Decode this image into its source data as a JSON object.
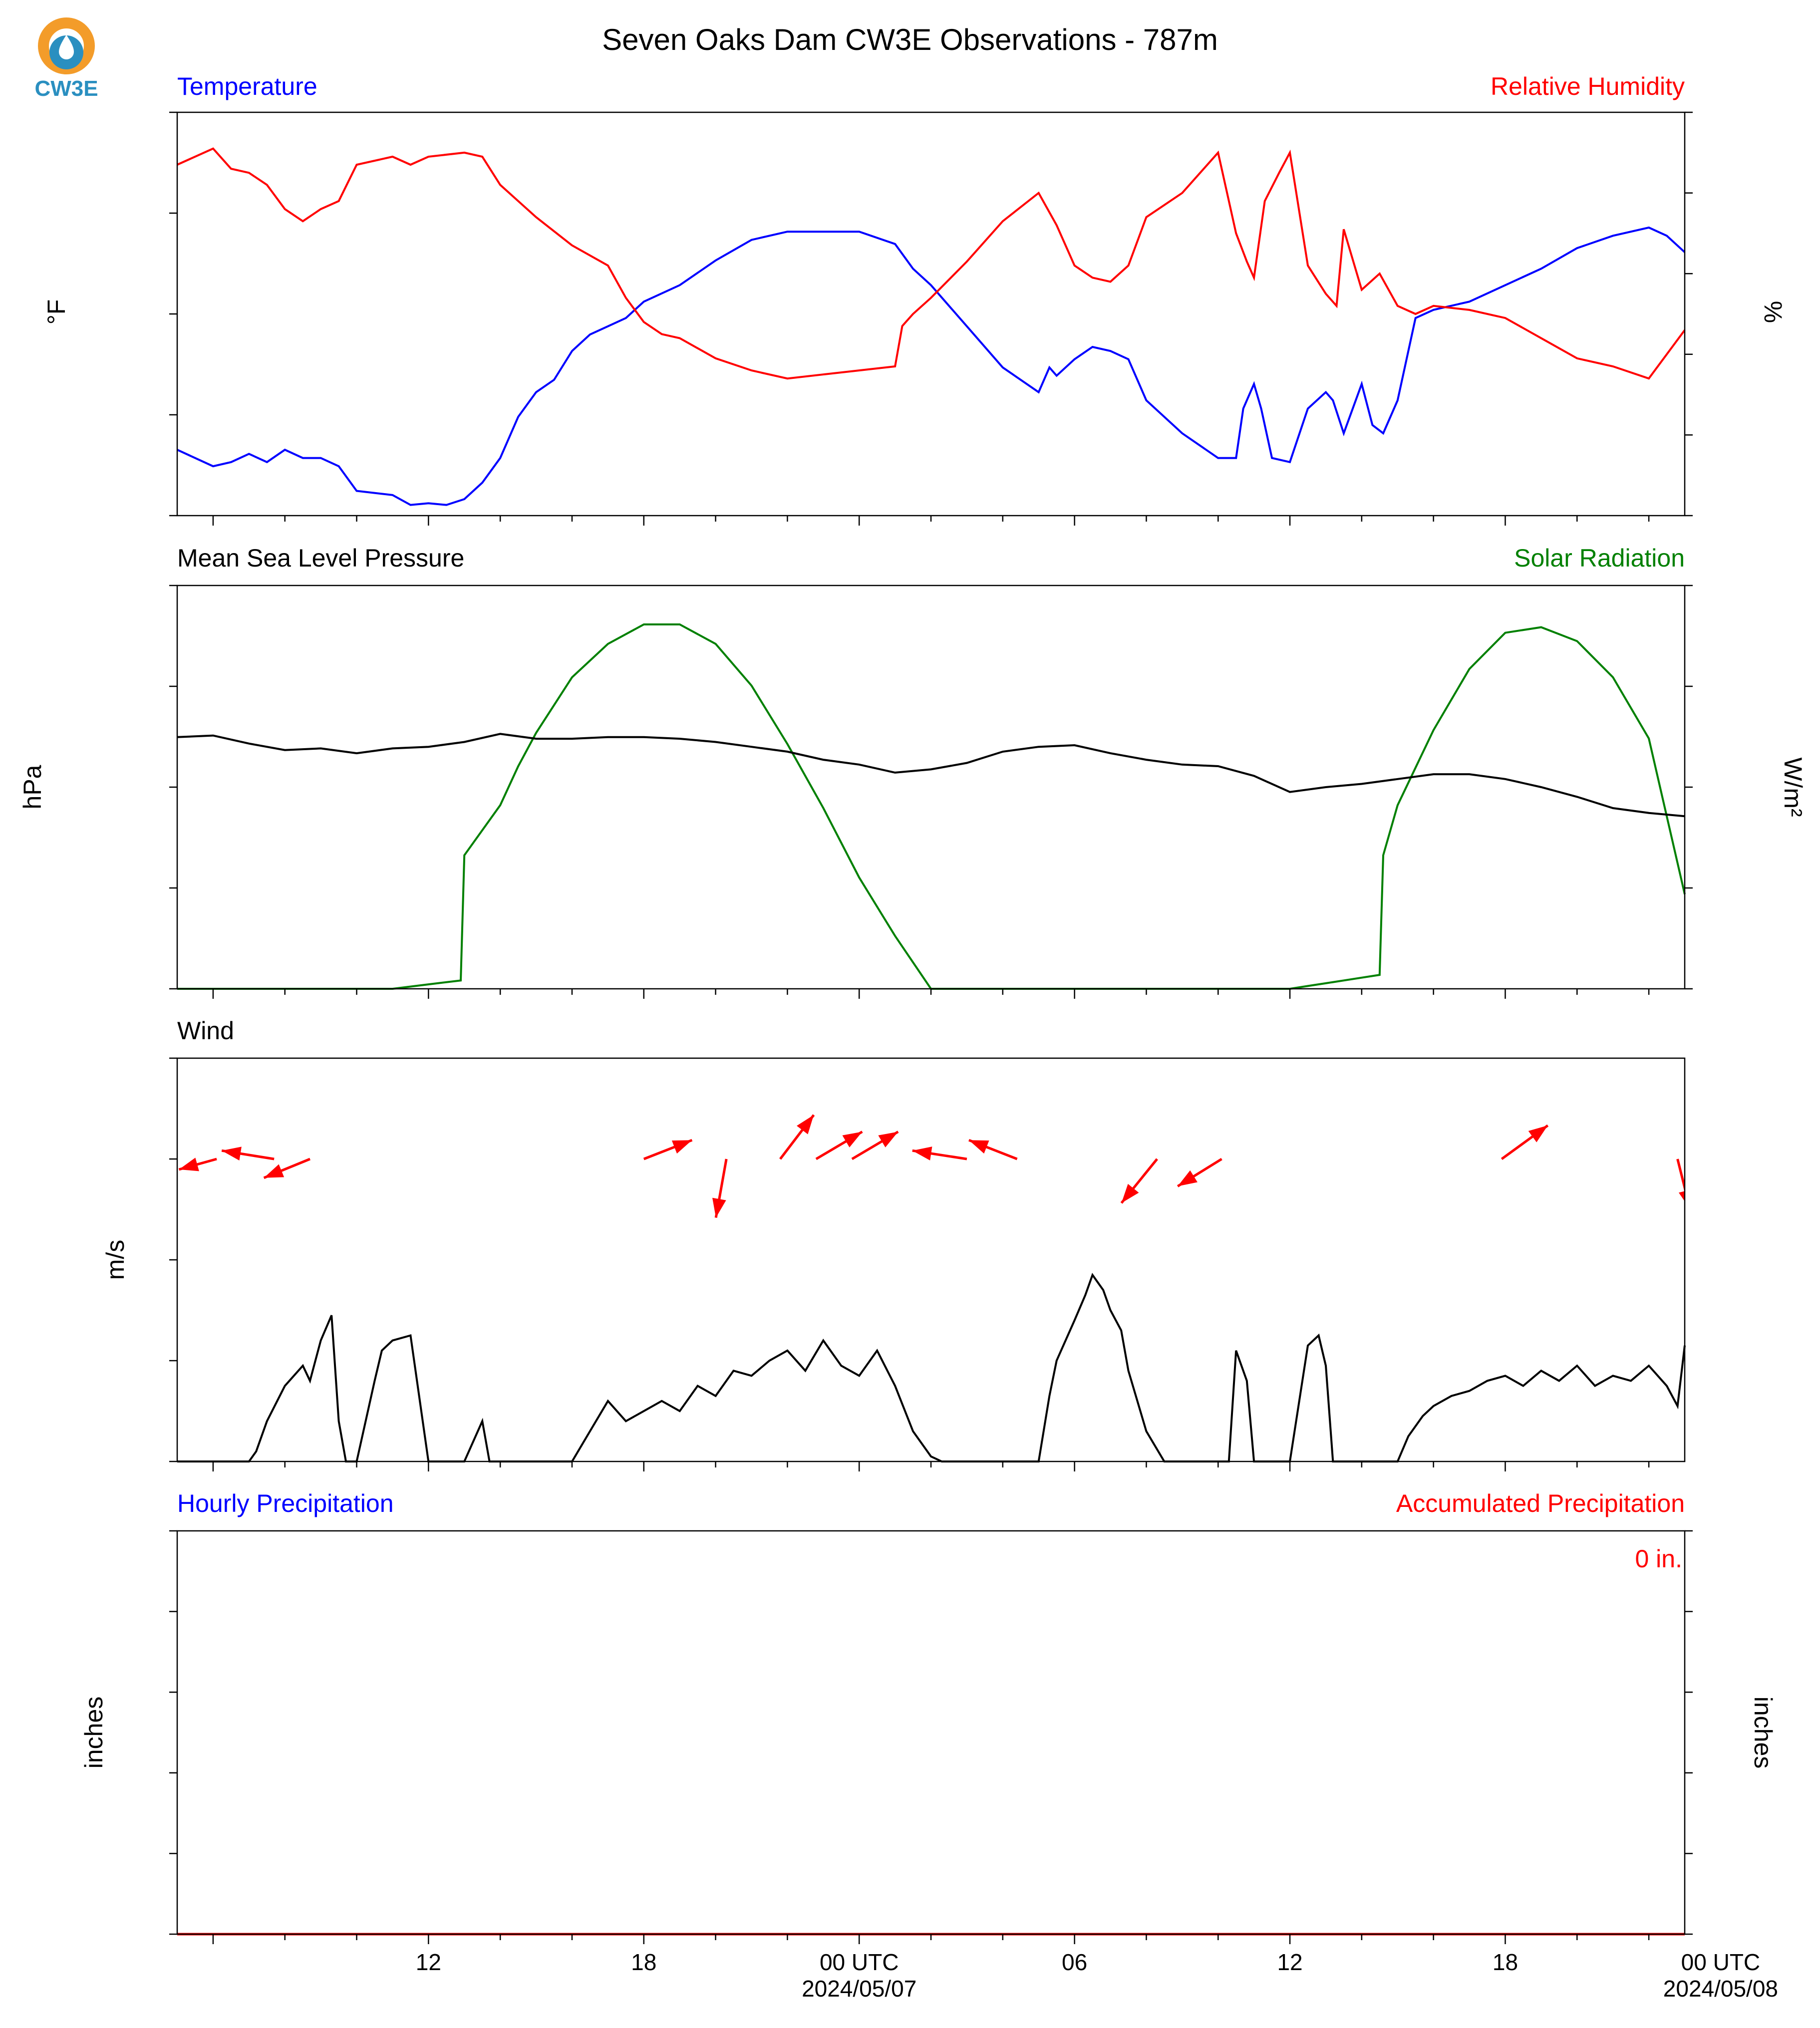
{
  "title": "Seven Oaks Dam CW3E Observations - 787m",
  "logo_text": "CW3E",
  "x_axis": {
    "range_hours": [
      -19.0,
      23.0
    ],
    "ticks": [
      {
        "h": -12,
        "label": "12",
        "sub": ""
      },
      {
        "h": -6,
        "label": "18",
        "sub": ""
      },
      {
        "h": 0,
        "label": "00 UTC",
        "sub": "2024/05/07"
      },
      {
        "h": 6,
        "label": "06",
        "sub": ""
      },
      {
        "h": 12,
        "label": "12",
        "sub": ""
      },
      {
        "h": 18,
        "label": "18",
        "sub": ""
      },
      {
        "h": 24,
        "label": "00 UTC",
        "sub": "2024/05/08"
      }
    ],
    "minor_every_hours": 2
  },
  "panels": {
    "temp": {
      "left_title": "Temperature",
      "right_title": "Relative Humidity",
      "left_label": "°F",
      "right_label": "%",
      "left_ticks": [
        "85.00",
        "72.75",
        "60.50",
        "48.25",
        "36.00"
      ],
      "right_ticks": [
        "100",
        "80",
        "60",
        "40",
        "20",
        "0"
      ]
    },
    "pressure": {
      "left_title": "Mean Sea Level Pressure",
      "right_title": "Solar Radiation",
      "left_label": "hPa",
      "right_label": "W/m²",
      "left_ticks": [
        "1027.00",
        "1020.75",
        "1014.50",
        "1008.25",
        "1002.00"
      ],
      "right_ticks": [
        "725.0",
        "543.8",
        "362.5",
        "181.2",
        "0.0"
      ]
    },
    "wind": {
      "left_title": "Wind",
      "left_label": "m/s",
      "left_ticks": [
        "8",
        "6",
        "4",
        "2",
        "0"
      ]
    },
    "precip": {
      "left_title": "Hourly Precipitation",
      "right_title": "Accumulated Precipitation",
      "left_label": "inches",
      "right_label": "inches",
      "left_ticks": [
        "1.0",
        "0.8",
        "0.6",
        "0.4",
        "0.2",
        "0.0"
      ],
      "right_ticks": [
        "1.0",
        "0.8",
        "0.6",
        "0.4",
        "0.2",
        "0.0"
      ],
      "total_label": "0 in."
    }
  },
  "colors": {
    "temperature": "#0000ff",
    "humidity": "#ff0000",
    "pressure": "#000000",
    "solar": "#008000",
    "wind": "#000000",
    "wind_arrows": "#ff0000",
    "accumulated": "#ff0000",
    "logo_orange": "#f39c2a",
    "logo_blue": "#2a8fc0"
  },
  "chart_data": [
    {
      "type": "line",
      "panel": "temp",
      "title": "Temperature",
      "ylim_left": [
        36,
        85
      ],
      "ylim_right": [
        0,
        100
      ],
      "series": [
        {
          "name": "Temperature",
          "axis": "left",
          "unit": "°F",
          "x": [
            -19,
            -18,
            -17.5,
            -17,
            -16.5,
            -16,
            -15.5,
            -15,
            -14.5,
            -14,
            -13,
            -12.5,
            -12,
            -11.5,
            -11,
            -10.5,
            -10,
            -9.5,
            -9,
            -8.5,
            -8,
            -7.5,
            -7,
            -6.5,
            -6,
            -5,
            -4,
            -3,
            -2,
            -1,
            0,
            1,
            1.5,
            2,
            3,
            4,
            5,
            5.3,
            5.5,
            6,
            6.5,
            7,
            7.5,
            8,
            9,
            10,
            10.5,
            10.7,
            11,
            11.2,
            11.5,
            12,
            12.5,
            13,
            13.2,
            13.5,
            14,
            14.3,
            14.6,
            15,
            15.5,
            16,
            17,
            18,
            19,
            20,
            21,
            22,
            22.5,
            23
          ],
          "y": [
            44,
            42,
            42.5,
            43.5,
            42.5,
            44,
            43,
            43,
            42,
            39,
            38.5,
            37.3,
            37.5,
            37.3,
            38,
            40,
            43,
            48,
            51,
            52.5,
            56,
            58,
            59,
            60,
            62,
            64,
            67,
            69.5,
            70.5,
            70.5,
            70.5,
            69,
            66,
            64,
            59,
            54,
            51,
            54,
            53,
            55,
            56.5,
            56,
            55,
            50,
            46,
            43,
            43,
            49,
            52,
            49,
            43,
            42.5,
            49,
            51,
            50,
            46,
            52,
            47,
            46,
            50,
            60,
            61,
            62,
            64,
            66,
            68.5,
            70,
            71,
            70,
            68
          ]
        },
        {
          "name": "Relative Humidity",
          "axis": "right",
          "unit": "%",
          "x": [
            -19,
            -18,
            -17.5,
            -17,
            -16.5,
            -16,
            -15.5,
            -15,
            -14.5,
            -14,
            -13,
            -12.5,
            -12,
            -11,
            -10.5,
            -10,
            -9.5,
            -9,
            -8,
            -7,
            -6.5,
            -6,
            -5.5,
            -5,
            -4,
            -3,
            -2,
            -1,
            0,
            1,
            1.2,
            1.5,
            2,
            3,
            4,
            5,
            5.5,
            6,
            6.5,
            7,
            7.5,
            8,
            9,
            10,
            10.5,
            10.8,
            11,
            11.3,
            11.7,
            12,
            12.5,
            13,
            13.3,
            13.5,
            14,
            14.5,
            15,
            15.5,
            16,
            17,
            18,
            19,
            20,
            21,
            22,
            23
          ],
          "y": [
            87,
            91,
            86,
            85,
            82,
            76,
            73,
            76,
            78,
            87,
            89,
            87,
            89,
            90,
            89,
            82,
            78,
            74,
            67,
            62,
            54,
            48,
            45,
            44,
            39,
            36,
            34,
            35,
            36,
            37,
            47,
            50,
            54,
            63,
            73,
            80,
            72,
            62,
            59,
            58,
            62,
            74,
            80,
            90,
            70,
            63,
            59,
            78,
            85,
            90,
            62,
            55,
            52,
            71,
            56,
            60,
            52,
            50,
            52,
            51,
            49,
            44,
            39,
            37,
            34,
            46
          ]
        }
      ]
    },
    {
      "type": "line",
      "panel": "pressure",
      "title": "Mean Sea Level Pressure",
      "ylim_left": [
        1002,
        1027
      ],
      "ylim_right": [
        0,
        725
      ],
      "series": [
        {
          "name": "Mean Sea Level Pressure",
          "axis": "left",
          "unit": "hPa",
          "x": [
            -19,
            -18,
            -17,
            -16,
            -15,
            -14,
            -13,
            -12,
            -11,
            -10,
            -9,
            -8,
            -7,
            -6,
            -5,
            -4,
            -3,
            -2,
            -1,
            0,
            1,
            2,
            3,
            4,
            5,
            6,
            7,
            8,
            9,
            10,
            11,
            12,
            13,
            14,
            15,
            16,
            17,
            18,
            19,
            20,
            21,
            22,
            23
          ],
          "y": [
            1017.6,
            1017.7,
            1017.2,
            1016.8,
            1016.9,
            1016.6,
            1016.9,
            1017.0,
            1017.3,
            1017.8,
            1017.5,
            1017.5,
            1017.6,
            1017.6,
            1017.5,
            1017.3,
            1017.0,
            1016.7,
            1016.2,
            1015.9,
            1015.4,
            1015.6,
            1016.0,
            1016.7,
            1017.0,
            1017.1,
            1016.6,
            1016.2,
            1015.9,
            1015.8,
            1015.2,
            1014.2,
            1014.5,
            1014.7,
            1015.0,
            1015.3,
            1015.3,
            1015.0,
            1014.5,
            1013.9,
            1013.2,
            1012.9,
            1012.7
          ]
        },
        {
          "name": "Solar Radiation",
          "axis": "right",
          "unit": "W/m²",
          "x": [
            -19,
            -13,
            -12,
            -11.1,
            -11,
            -10,
            -9.5,
            -9,
            -8,
            -7,
            -6,
            -5,
            -4,
            -3,
            -2,
            -1,
            0,
            1,
            2,
            3,
            4,
            10,
            11,
            12,
            12.5,
            13,
            13.5,
            14,
            14.5,
            14.6,
            15,
            16,
            17,
            18,
            19,
            20,
            21,
            22,
            23
          ],
          "y": [
            0,
            0,
            8,
            15,
            240,
            330,
            400,
            460,
            560,
            620,
            655,
            655,
            620,
            545,
            440,
            325,
            200,
            95,
            0,
            0,
            0,
            0,
            0,
            0,
            5,
            10,
            15,
            20,
            25,
            240,
            330,
            465,
            575,
            640,
            650,
            625,
            560,
            450,
            170
          ]
        }
      ]
    },
    {
      "type": "line",
      "panel": "wind",
      "title": "Wind",
      "ylim": [
        0,
        8
      ],
      "series": [
        {
          "name": "Wind",
          "unit": "m/s",
          "x": [
            -19,
            -17,
            -16.8,
            -16.5,
            -16,
            -15.5,
            -15.3,
            -15,
            -14.7,
            -14.5,
            -14.3,
            -14,
            -13.5,
            -13.3,
            -13,
            -12.5,
            -12,
            -11.5,
            -11,
            -10.5,
            -10.3,
            -10,
            -9.5,
            -9,
            -8.5,
            -8,
            -7.5,
            -7,
            -6.5,
            -6,
            -5.5,
            -5,
            -4.5,
            -4,
            -3.5,
            -3,
            -2.5,
            -2,
            -1.5,
            -1,
            -0.5,
            0,
            0.5,
            1,
            1.5,
            2,
            2.3,
            2.5,
            3,
            3.5,
            4,
            4.5,
            5,
            5.3,
            5.5,
            6,
            6.3,
            6.5,
            6.8,
            7,
            7.3,
            7.5,
            8,
            8.5,
            9,
            9.5,
            10,
            10.3,
            10.5,
            10.8,
            11,
            11.5,
            12,
            12.5,
            12.8,
            13,
            13.2,
            13.5,
            13.8,
            14,
            14.2,
            14.5,
            15,
            15.3,
            15.7,
            16,
            16.5,
            17,
            17.5,
            18,
            18.5,
            19,
            19.5,
            20,
            20.5,
            21,
            21.5,
            22,
            22.5,
            22.8,
            23
          ],
          "y": [
            0,
            0,
            0.2,
            0.8,
            1.5,
            1.9,
            1.6,
            2.4,
            2.9,
            0.8,
            0,
            0,
            1.6,
            2.2,
            2.4,
            2.5,
            0,
            0,
            0,
            0.8,
            0,
            0,
            0,
            0,
            0,
            0,
            0.6,
            1.2,
            0.8,
            1.0,
            1.2,
            1.0,
            1.5,
            1.3,
            1.8,
            1.7,
            2.0,
            2.2,
            1.8,
            2.4,
            1.9,
            1.7,
            2.2,
            1.5,
            0.6,
            0.1,
            0,
            0,
            0,
            0,
            0,
            0,
            0,
            1.3,
            2.0,
            2.8,
            3.3,
            3.7,
            3.4,
            3.0,
            2.6,
            1.8,
            0.6,
            0,
            0,
            0,
            0,
            0,
            2.2,
            1.6,
            0,
            0,
            0,
            2.3,
            2.5,
            1.9,
            0,
            0,
            0,
            0,
            0,
            0,
            0,
            0.5,
            0.9,
            1.1,
            1.3,
            1.4,
            1.6,
            1.7,
            1.5,
            1.8,
            1.6,
            1.9,
            1.5,
            1.7,
            1.6,
            1.9,
            1.5,
            1.1,
            2.3
          ]
        },
        {
          "name": "Wind direction",
          "kind": "arrows",
          "arrows": [
            {
              "h": -16.3,
              "u": -2.5,
              "v": 0.4
            },
            {
              "h": -17.9,
              "u": -1.8,
              "v": -0.5
            },
            {
              "h": -15.3,
              "u": -2.2,
              "v": -0.9
            },
            {
              "h": -6,
              "u": 2.3,
              "v": 0.9
            },
            {
              "h": -3.7,
              "u": -0.5,
              "v": -2.8
            },
            {
              "h": -2.2,
              "u": 1.6,
              "v": 2.1
            },
            {
              "h": -1.2,
              "u": 2.2,
              "v": 1.3
            },
            {
              "h": -0.2,
              "u": 2.2,
              "v": 1.3
            },
            {
              "h": 3.0,
              "u": -2.6,
              "v": 0.4
            },
            {
              "h": 4.4,
              "u": -2.3,
              "v": 0.9
            },
            {
              "h": 8.3,
              "u": -1.7,
              "v": -2.1
            },
            {
              "h": 10.1,
              "u": -2.1,
              "v": -1.3
            },
            {
              "h": 17.9,
              "u": 2.2,
              "v": 1.6
            },
            {
              "h": 22.8,
              "u": 0.6,
              "v": -2.4
            },
            {
              "h": 23.2,
              "u": 1.9,
              "v": 1.9
            },
            {
              "h": 24.6,
              "u": 2.0,
              "v": 1.2
            },
            {
              "h": 25.0,
              "u": -2.0,
              "v": 0.3
            }
          ]
        }
      ]
    },
    {
      "type": "bar",
      "panel": "precip",
      "title": "Hourly Precipitation",
      "ylim": [
        0,
        1.0
      ],
      "series": [
        {
          "name": "Hourly Precipitation",
          "unit": "inches",
          "x": [],
          "values": []
        },
        {
          "name": "Accumulated Precipitation",
          "unit": "inches",
          "x": [
            -19,
            23
          ],
          "values": [
            0,
            0
          ]
        }
      ]
    }
  ]
}
